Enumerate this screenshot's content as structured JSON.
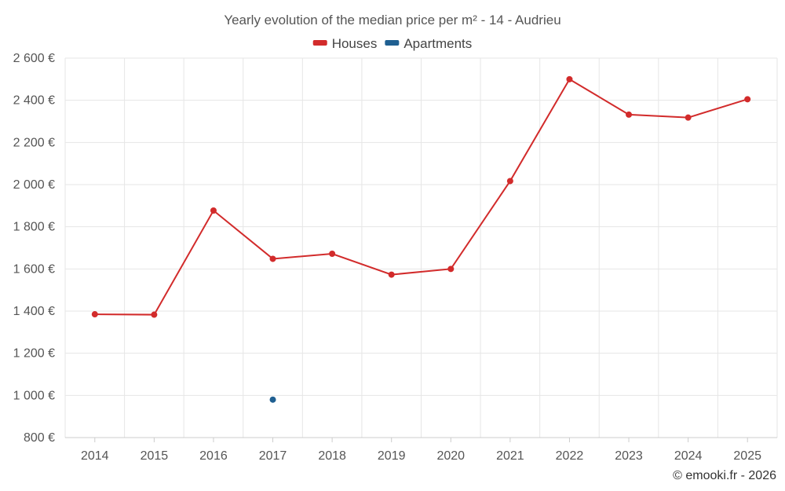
{
  "chart_data": {
    "type": "line",
    "title": "Yearly evolution of the median price per m² - 14 - Audrieu",
    "categories": [
      "2014",
      "2015",
      "2016",
      "2017",
      "2018",
      "2019",
      "2020",
      "2021",
      "2022",
      "2023",
      "2024",
      "2025"
    ],
    "series": [
      {
        "name": "Houses",
        "color": "#d22b2b",
        "values": [
          1385,
          1383,
          1877,
          1648,
          1672,
          1573,
          1600,
          2017,
          2500,
          2332,
          2318,
          2405
        ]
      },
      {
        "name": "Apartments",
        "color": "#1f5f91",
        "values": [
          null,
          null,
          null,
          980,
          null,
          null,
          null,
          null,
          null,
          null,
          null,
          null
        ]
      }
    ],
    "ylim": [
      800,
      2600
    ],
    "yticks": [
      800,
      1000,
      1200,
      1400,
      1600,
      1800,
      2000,
      2200,
      2400,
      2600
    ],
    "ytick_labels": [
      "800 €",
      "1 000 €",
      "1 200 €",
      "1 400 €",
      "1 600 €",
      "1 800 €",
      "2 000 €",
      "2 200 €",
      "2 400 €",
      "2 600 €"
    ],
    "xlabel": "",
    "ylabel": "",
    "grid": true,
    "legend_position": "top-center"
  },
  "credit": "© emooki.fr - 2026"
}
